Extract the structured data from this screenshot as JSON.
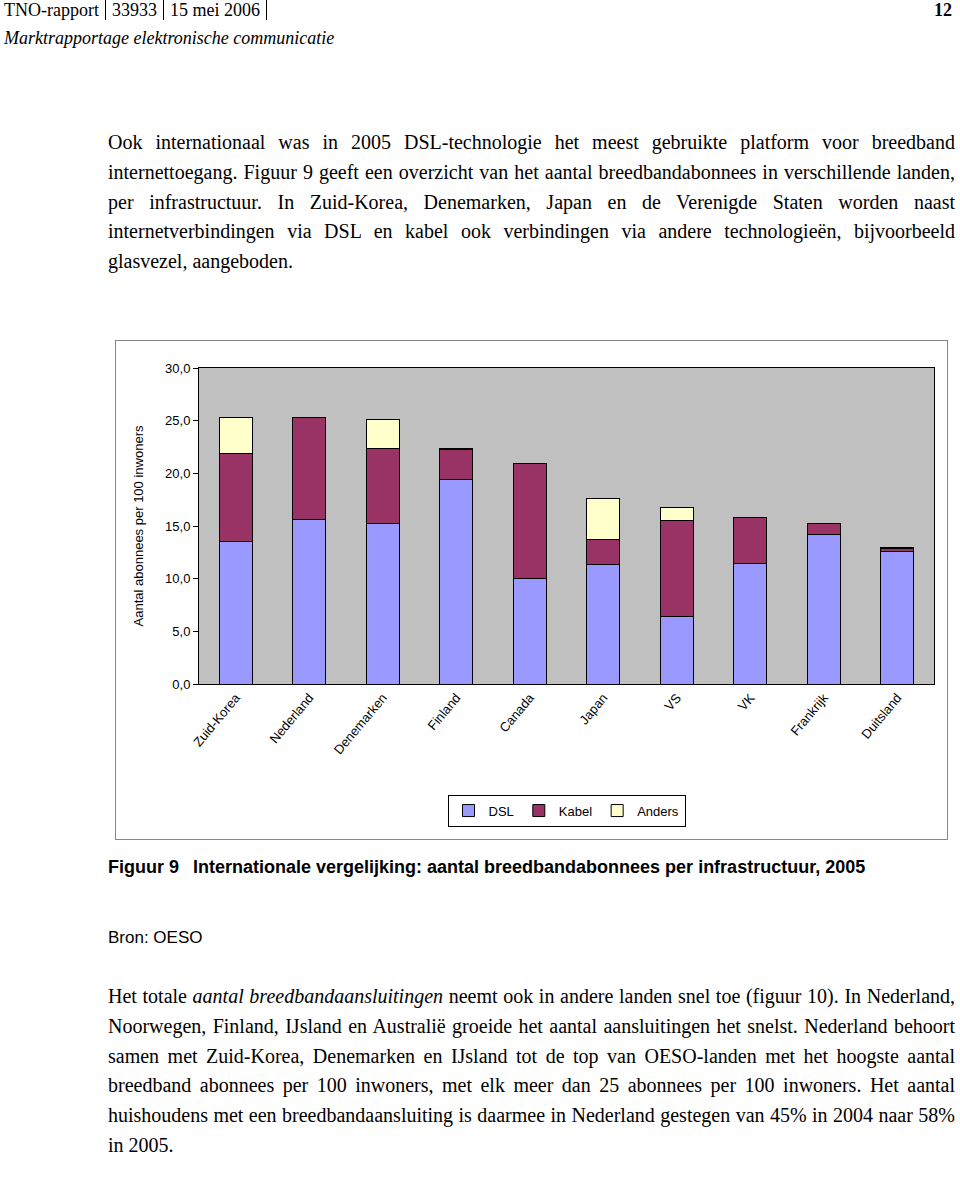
{
  "header": {
    "report": [
      "TNO-rapport",
      "33933",
      "15 mei 2006"
    ],
    "page": "12",
    "subtitle": "Marktrapportage elektronische communicatie"
  },
  "text_before": [
    {
      "text": "Ook internationaal was in 2005 DSL-technologie het meest gebruikte platform voor breedband internettoegang. Figuur 9 geeft een overzicht van het aantal breedbandabonnees in verschillende landen, per infrastructuur. In Zuid-Korea, Denemarken, Japan en de Verenigde Staten worden naast internetverbindingen via DSL en kabel ook verbindingen via andere technologieën, bijvoorbeeld glasvezel, aangeboden."
    }
  ],
  "chart_data": {
    "type": "bar",
    "stacked": true,
    "y_label": "Aantal abonnees per 100 inwoners",
    "categories": [
      "Zuid-Korea",
      "Nederland",
      "Denemarken",
      "Finland",
      "Canada",
      "Japan",
      "VS",
      "VK",
      "Frankrijk",
      "Duitsland"
    ],
    "series": [
      {
        "name": "DSL",
        "color": "#9999ff",
        "values": [
          13.5,
          15.6,
          15.2,
          19.4,
          10.0,
          11.3,
          6.4,
          11.4,
          14.2,
          12.6
        ]
      },
      {
        "name": "Kabel",
        "color": "#993366",
        "values": [
          8.4,
          9.7,
          7.2,
          2.9,
          10.9,
          2.4,
          9.1,
          4.4,
          1.0,
          0.3
        ]
      },
      {
        "name": "Anders",
        "color": "#ffffcc",
        "values": [
          3.4,
          0,
          2.7,
          0.1,
          0,
          3.9,
          1.3,
          0,
          0,
          0.1
        ]
      }
    ],
    "ylim": [
      0,
      30
    ],
    "yticks": [
      {
        "value": 0,
        "label": "0,0"
      },
      {
        "value": 5,
        "label": "5,0"
      },
      {
        "value": 10,
        "label": "10,0"
      },
      {
        "value": 15,
        "label": "15,0"
      },
      {
        "value": 20,
        "label": "20,0"
      },
      {
        "value": 25,
        "label": "25,0"
      },
      {
        "value": 30,
        "label": "30,0"
      }
    ],
    "grid": false,
    "legend": "bottom"
  },
  "caption": {
    "label": "Figuur 9",
    "text": "Internationale vergelijking: aantal breedbandabonnees per infrastructuur, 2005"
  },
  "source": "Bron: OESO",
  "text_after": [
    {
      "text": "Het totale "
    },
    {
      "text": "aantal breedbandaansluitingen",
      "style": "italic"
    },
    {
      "text": " neemt ook in andere landen snel toe (figuur 10). In Nederland, Noorwegen, Finland, IJsland en Australië groeide het aantal aansluitingen het snelst. Nederland behoort samen met Zuid-Korea, Denemarken en IJsland tot de top van OESO-landen met het hoogste aantal breedband abonnees per 100 inwoners, met elk meer dan 25 abonnees per 100 inwoners. Het aantal huishoudens met een breedbandaansluiting is daarmee in Nederland gestegen van 45% in 2004 naar 58% in 2005."
    }
  ]
}
